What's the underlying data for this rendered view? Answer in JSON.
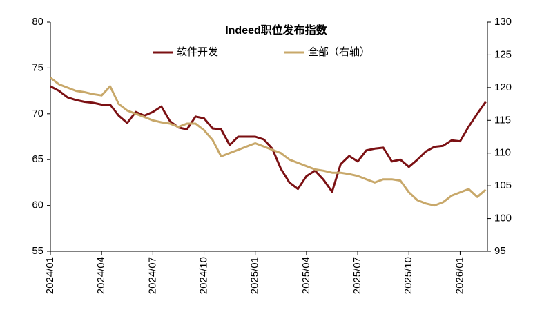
{
  "chart_data": {
    "type": "line",
    "title": "Indeed职位发布指数",
    "x": [
      0,
      0.5,
      1,
      1.5,
      2,
      2.5,
      3,
      3.5,
      4,
      4.5,
      5,
      5.5,
      6,
      6.5,
      7,
      7.5,
      8,
      8.5,
      9,
      9.5,
      10,
      10.5,
      11,
      11.5,
      12,
      12.5,
      13,
      13.5,
      14,
      14.5,
      15,
      15.5,
      16,
      16.5,
      17,
      17.5,
      18,
      18.5,
      19,
      19.5,
      20,
      20.5,
      21,
      21.5,
      22,
      22.5,
      23,
      23.5,
      24,
      24.5,
      25,
      25.5
    ],
    "xlim": [
      0,
      25.6
    ],
    "xticks": [
      {
        "value": 0,
        "label": "2024/01"
      },
      {
        "value": 3,
        "label": "2024/04"
      },
      {
        "value": 6,
        "label": "2024/07"
      },
      {
        "value": 9,
        "label": "2024/10"
      },
      {
        "value": 12,
        "label": "2025/01"
      },
      {
        "value": 15,
        "label": "2025/04"
      },
      {
        "value": 18,
        "label": "2025/07"
      },
      {
        "value": 21,
        "label": "2025/10"
      },
      {
        "value": 24,
        "label": "2026/01"
      }
    ],
    "ylim": [
      55,
      80
    ],
    "yticks": [
      55,
      60,
      65,
      70,
      75,
      80
    ],
    "y2lim": [
      95,
      130
    ],
    "y2ticks": [
      95,
      100,
      105,
      110,
      115,
      120,
      125,
      130
    ],
    "legend": "top",
    "series": [
      {
        "name": "软件开发",
        "color": "#7b1013",
        "values": [
          73,
          72.5,
          71.8,
          71.5,
          71.3,
          71.2,
          71,
          71,
          69.8,
          69,
          70.2,
          69.8,
          70.2,
          70.8,
          69.2,
          68.5,
          68.3,
          69.7,
          69.5,
          68.4,
          68.3,
          66.6,
          67.5,
          67.5,
          67.5,
          67.2,
          66.2,
          64,
          62.5,
          61.8,
          63.2,
          63.8,
          62.8,
          61.5,
          64.5,
          65.4,
          64.8,
          66,
          66.2,
          66.3,
          64.8,
          65,
          64.2,
          65,
          65.9,
          66.4,
          66.5,
          67.1,
          67,
          68.6,
          70,
          71.3
        ]
      },
      {
        "name": "全部（右轴）",
        "color": "#c8a86a",
        "axis": "y2",
        "values": [
          121.5,
          120.5,
          120,
          119.5,
          119.3,
          119,
          118.8,
          120.2,
          117.5,
          116.5,
          116,
          115.5,
          115,
          114.7,
          114.5,
          114,
          114.5,
          114.5,
          113.5,
          112,
          109.5,
          110,
          110.5,
          111,
          111.5,
          111,
          110.5,
          110,
          109,
          108.5,
          108,
          107.5,
          107.3,
          107,
          107,
          106.8,
          106.5,
          106,
          105.5,
          106,
          106,
          105.8,
          104,
          102.8,
          102.3,
          102,
          102.5,
          103.5,
          104,
          104.5,
          103.3,
          104.4
        ]
      }
    ]
  }
}
